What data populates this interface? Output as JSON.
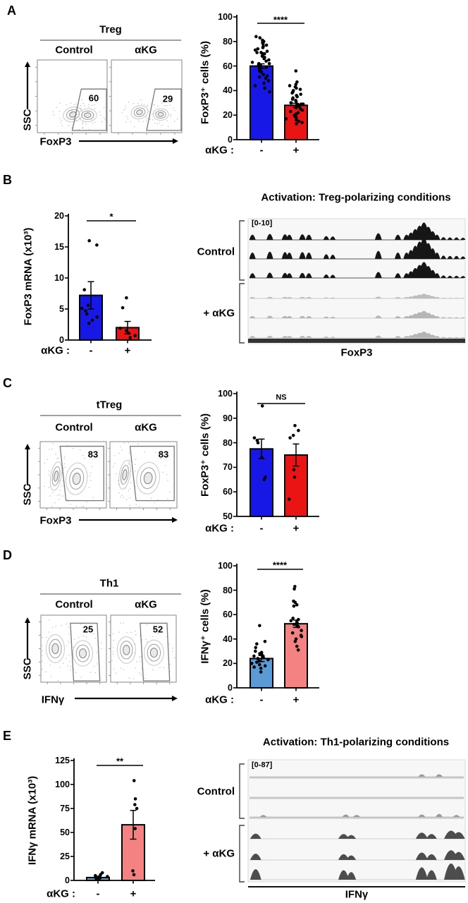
{
  "figure": {
    "panel_labels": [
      "A",
      "B",
      "C",
      "D",
      "E"
    ]
  },
  "flow_plots": [
    {
      "panel": "A",
      "title": "Treg",
      "conditions": [
        "Control",
        "αKG"
      ],
      "gate_percents": [
        "60",
        "29"
      ],
      "y_axis": "SSC",
      "x_axis": "FoxP3"
    },
    {
      "panel": "C",
      "title": "tTreg",
      "conditions": [
        "Control",
        "αKG"
      ],
      "gate_percents": [
        "83",
        "83"
      ],
      "y_axis": "SSC",
      "x_axis": "FoxP3"
    },
    {
      "panel": "D",
      "title": "Th1",
      "conditions": [
        "Control",
        "αKG"
      ],
      "gate_percents": [
        "25",
        "52"
      ],
      "y_axis": "SSC",
      "x_axis": "IFNγ"
    }
  ],
  "chart_data": [
    {
      "panel": "A",
      "type": "bar",
      "title": "",
      "ylabel": "FoxP3⁺ cells (%)",
      "xlabel": "αKG :",
      "categories": [
        "-",
        "+"
      ],
      "values": [
        60,
        28
      ],
      "sem": [
        1.8,
        1.6
      ],
      "ylim": [
        0,
        100
      ],
      "yticks": [
        0,
        20,
        40,
        60,
        80,
        100
      ],
      "significance": "****",
      "bar_colors": [
        "#1818E6",
        "#EB1414"
      ],
      "points": [
        [
          84,
          83,
          81,
          80,
          79,
          78,
          77,
          76,
          75,
          74,
          73,
          72,
          71,
          71,
          70,
          70,
          69,
          68,
          67,
          66,
          65,
          64,
          63,
          62,
          62,
          61,
          60,
          60,
          59,
          58,
          57,
          56,
          55,
          53,
          52,
          51,
          50,
          48,
          46,
          44,
          42,
          39
        ],
        [
          56,
          47,
          45,
          44,
          43,
          42,
          41,
          40,
          39,
          38,
          37,
          36,
          35,
          34,
          33,
          32,
          31,
          30,
          30,
          29,
          29,
          28,
          28,
          27,
          26,
          25,
          24,
          23,
          22,
          21,
          20,
          19,
          18,
          17,
          16,
          15,
          14,
          13
        ]
      ]
    },
    {
      "panel": "B",
      "type": "bar",
      "title": "",
      "ylabel": "FoxP3 mRNA (x10³)",
      "xlabel": "αKG :",
      "categories": [
        "-",
        "+"
      ],
      "values": [
        7.2,
        2.0
      ],
      "sem": [
        2.2,
        1.0
      ],
      "ylim": [
        0,
        20
      ],
      "yticks": [
        0,
        5,
        10,
        15,
        20
      ],
      "significance": "*",
      "bar_colors": [
        "#1818E6",
        "#EB1414"
      ],
      "points": [
        [
          16,
          15.3,
          8.1,
          5.6,
          5.1,
          4.7,
          4.2,
          3.7,
          3.2,
          2.7
        ],
        [
          6.8,
          5.2,
          1.9,
          1.5,
          1.1,
          0.7,
          0.4
        ]
      ]
    },
    {
      "panel": "C",
      "type": "bar",
      "title": "",
      "ylabel": "FoxP3⁺ cells (%)",
      "xlabel": "αKG :",
      "categories": [
        "-",
        "+"
      ],
      "values": [
        77.5,
        75
      ],
      "sem": [
        4,
        4.5
      ],
      "ylim": [
        50,
        100
      ],
      "yticks": [
        50,
        60,
        70,
        80,
        90,
        100
      ],
      "significance": "NS",
      "bar_colors": [
        "#1818E6",
        "#EB1414"
      ],
      "points": [
        [
          95,
          82,
          81,
          80,
          74,
          66,
          65
        ],
        [
          87,
          85,
          83,
          82,
          69,
          66,
          57
        ]
      ]
    },
    {
      "panel": "D",
      "type": "bar",
      "title": "",
      "ylabel": "IFNγ⁺ cells (%)",
      "xlabel": "αKG :",
      "categories": [
        "-",
        "+"
      ],
      "values": [
        24,
        52.5
      ],
      "sem": [
        2.5,
        3
      ],
      "ylim": [
        0,
        100
      ],
      "yticks": [
        0,
        20,
        40,
        60,
        80,
        100
      ],
      "significance": "****",
      "bar_colors": [
        "#5B9BD5",
        "#F48282"
      ],
      "points": [
        [
          51,
          38,
          36,
          33,
          30,
          29,
          28,
          27,
          26,
          25,
          24,
          23,
          22,
          21,
          20,
          19,
          18,
          17,
          16,
          13
        ],
        [
          83,
          81,
          71,
          70,
          68,
          67,
          57,
          56,
          55,
          54,
          53,
          52,
          51,
          50,
          47,
          45,
          43,
          42,
          40,
          38,
          34,
          31
        ]
      ]
    },
    {
      "panel": "E",
      "type": "bar",
      "title": "",
      "ylabel": "IFNγ mRNA (x10³)",
      "xlabel": "αKG :",
      "categories": [
        "-",
        "+"
      ],
      "values": [
        3,
        58
      ],
      "sem": [
        1.5,
        15
      ],
      "ylim": [
        0,
        125
      ],
      "yticks": [
        0,
        25,
        50,
        75,
        100,
        125
      ],
      "significance": "**",
      "bar_colors": [
        "#5B9BD5",
        "#F48282"
      ],
      "points": [
        [
          8,
          6,
          5,
          4,
          3,
          2,
          2
        ],
        [
          104,
          85,
          79,
          75,
          54,
          10,
          6
        ]
      ]
    }
  ],
  "genome_browsers": [
    {
      "panel": "B",
      "title": "Activation: Treg-polarizing conditions",
      "scale_range": "[0-10]",
      "gene": "FoxP3",
      "groups": [
        {
          "label": "Control",
          "n_tracks": 3
        },
        {
          "label": "+ αKG",
          "n_tracks": 3
        }
      ],
      "peaks": [
        [
          0.02,
          0.3
        ],
        [
          0.1,
          0.34
        ],
        [
          0.17,
          0.32
        ],
        [
          0.19,
          0.3
        ],
        [
          0.25,
          0.32
        ],
        [
          0.28,
          0.3
        ],
        [
          0.36,
          0.22
        ],
        [
          0.39,
          0.2
        ],
        [
          0.6,
          0.38
        ],
        [
          0.69,
          0.3
        ],
        [
          0.73,
          0.3
        ],
        [
          0.75,
          0.42
        ],
        [
          0.77,
          0.62
        ],
        [
          0.79,
          0.82
        ],
        [
          0.81,
          1.0
        ],
        [
          0.83,
          0.75
        ],
        [
          0.85,
          0.5
        ],
        [
          0.87,
          0.3
        ],
        [
          0.9,
          0.16
        ],
        [
          0.93,
          0.14
        ],
        [
          0.96,
          0.14
        ],
        [
          0.99,
          0.12
        ]
      ]
    },
    {
      "panel": "E",
      "title": "Activation: Th1-polarizing conditions",
      "scale_range": "[0-87]",
      "gene": "IFNγ",
      "groups": [
        {
          "label": "Control",
          "n_tracks": 3
        },
        {
          "label": "+ αKG",
          "n_tracks": 3
        }
      ],
      "peaks": [
        [
          0.035,
          0.55
        ],
        [
          0.44,
          0.5
        ],
        [
          0.475,
          0.4
        ],
        [
          0.8,
          0.65
        ],
        [
          0.845,
          0.5
        ],
        [
          0.935,
          0.85
        ],
        [
          0.97,
          0.7
        ]
      ],
      "control_bumps": [
        [
          [
            0.8,
            0.5
          ],
          [
            0.88,
            0.5
          ]
        ],
        [],
        [
          [
            0.07,
            0.4
          ],
          [
            0.45,
            0.5
          ],
          [
            0.5,
            0.4
          ],
          [
            0.8,
            0.5
          ],
          [
            0.88,
            0.6
          ],
          [
            0.96,
            0.4
          ]
        ]
      ]
    }
  ]
}
